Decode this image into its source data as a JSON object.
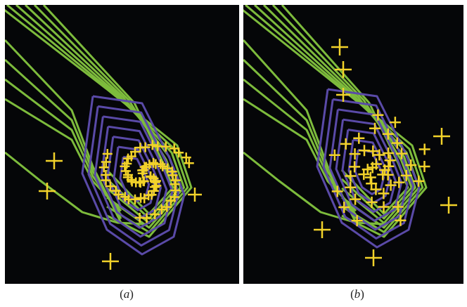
{
  "captions": {
    "a": {
      "open": "(",
      "letter": "a",
      "close": ")"
    },
    "b": {
      "open": "(",
      "letter": "b",
      "close": ")"
    }
  },
  "colors": {
    "background": "#050608",
    "contour_outer": "#7dbb3c",
    "contour_inner": "#5a4aa8",
    "markers": "#f2d22a"
  }
}
